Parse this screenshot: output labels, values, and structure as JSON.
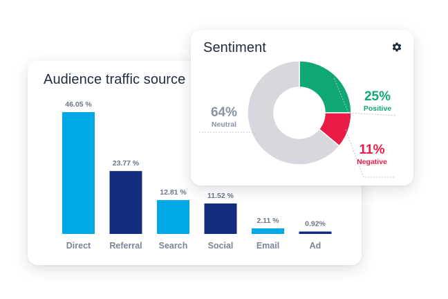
{
  "traffic": {
    "title": "Audience traffic source"
  },
  "sentiment": {
    "title": "Sentiment",
    "settings_icon": "gear-icon"
  },
  "colors": {
    "light_blue": "#00a9e6",
    "navy": "#122d7e",
    "neutral": "#d6d8de",
    "positive": "#10a872",
    "negative": "#ea1b44",
    "neutral_text": "#8a93a3"
  },
  "chart_data": [
    {
      "type": "bar",
      "title": "Audience traffic source",
      "categories": [
        "Direct",
        "Referral",
        "Search",
        "Social",
        "Email",
        "Ad"
      ],
      "values": [
        46.05,
        23.77,
        12.81,
        11.52,
        2.11,
        0.92
      ],
      "value_labels": [
        "46.05 %",
        "23.77 %",
        "12.81 %",
        "11.52 %",
        "2.11 %",
        "0.92%"
      ],
      "bar_colors": [
        "#00a9e6",
        "#122d7e",
        "#00a9e6",
        "#122d7e",
        "#00a9e6",
        "#122d7e"
      ],
      "xlabel": "",
      "ylabel": "",
      "ylim": [
        0,
        46.05
      ],
      "grid": false
    },
    {
      "type": "pie",
      "title": "Sentiment",
      "donut": true,
      "slices": [
        {
          "label": "Positive",
          "value": 25,
          "display": "25%",
          "color": "#10a872"
        },
        {
          "label": "Negative",
          "value": 11,
          "display": "11%",
          "color": "#ea1b44"
        },
        {
          "label": "Neutral",
          "value": 64,
          "display": "64%",
          "color": "#d6d8de"
        }
      ]
    }
  ]
}
